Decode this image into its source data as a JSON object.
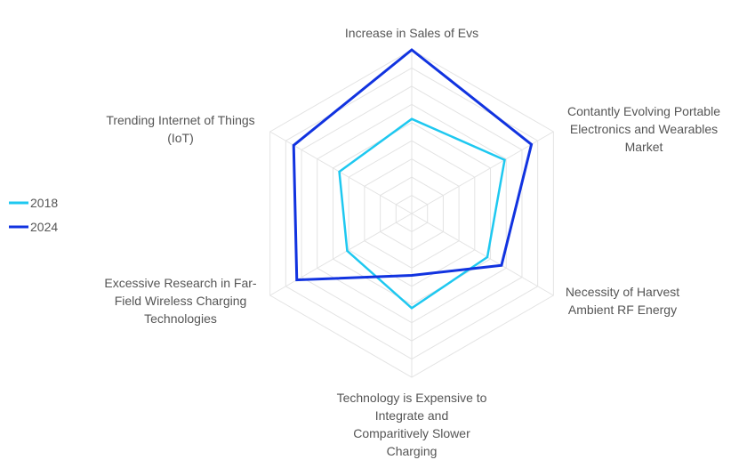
{
  "chart_data": {
    "type": "radar",
    "title": "",
    "axes": [
      [
        "Increase in Sales of Evs"
      ],
      [
        "Contantly Evolving Portable",
        "Electronics and Wearables",
        "Market"
      ],
      [
        "Necessity of Harvest",
        "Ambient RF Energy"
      ],
      [
        "Technology is Expensive to",
        "Integrate and",
        "Comparitively Slower",
        "Charging"
      ],
      [
        "Excessive Research in Far-",
        "Field Wireless Charging",
        "Technologies"
      ],
      [
        "Trending Internet of Things",
        "(IoT)"
      ]
    ],
    "rlim": [
      0,
      9
    ],
    "grid": true,
    "legend_position": "left",
    "series": [
      {
        "name": "2018",
        "color": "#1ec8f0",
        "values": [
          5.2,
          5.9,
          4.8,
          5.2,
          4.1,
          4.6
        ]
      },
      {
        "name": "2024",
        "color": "#1133e0",
        "values": [
          9.0,
          7.6,
          5.7,
          3.4,
          7.3,
          7.5
        ]
      }
    ]
  }
}
